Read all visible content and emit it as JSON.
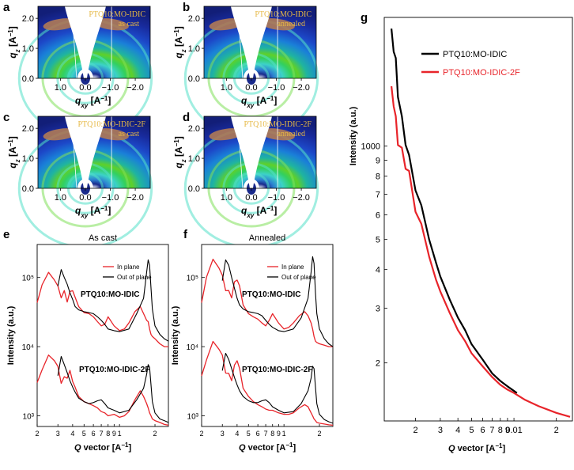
{
  "panel_letters": [
    "a",
    "b",
    "c",
    "d",
    "e",
    "f",
    "g"
  ],
  "colors": {
    "red": "#e8242a",
    "black": "#000000",
    "gold": "#e6b844",
    "det_bg": "#1a2a8c"
  },
  "chart_data": [
    {
      "panel": "a",
      "type": "heatmap",
      "title": "PTQ10:MO-IDIC",
      "subtitle": "as cast",
      "xlabel": "q_xy [A^-1]",
      "ylabel": "q_z [A^-1]",
      "xticks": [
        "1.0",
        "0.0",
        "−1.0",
        "−2.0"
      ],
      "yticks": [
        "0.0",
        "1.0",
        "2.0"
      ],
      "xlim": [
        1.9,
        -2.6
      ],
      "ylim": [
        0,
        2.4
      ]
    },
    {
      "panel": "b",
      "type": "heatmap",
      "title": "PTQ10:MO-IDIC",
      "subtitle": "annealed",
      "xlabel": "q_xy [A^-1]",
      "ylabel": "q_z [A^-1]",
      "xticks": [
        "1.0",
        "0.0",
        "−1.0",
        "−2.0"
      ],
      "yticks": [
        "0.0",
        "1.0",
        "2.0"
      ],
      "xlim": [
        1.9,
        -2.6
      ],
      "ylim": [
        0,
        2.4
      ]
    },
    {
      "panel": "c",
      "type": "heatmap",
      "title": "PTQ10:MO-IDIC-2F",
      "subtitle": "as cast",
      "xlabel": "q_xy [A^-1]",
      "ylabel": "q_z [A^-1]",
      "xticks": [
        "1.0",
        "0.0",
        "−1.0",
        "−2.0"
      ],
      "yticks": [
        "0.0",
        "1.0",
        "2.0"
      ],
      "xlim": [
        1.9,
        -2.6
      ],
      "ylim": [
        0,
        2.4
      ]
    },
    {
      "panel": "d",
      "type": "heatmap",
      "title": "PTQ10:MO-IDIC-2F",
      "subtitle": "annealed",
      "xlabel": "q_xy [A^-1]",
      "ylabel": "q_z [A^-1]",
      "xticks": [
        "1.0",
        "0.0",
        "−1.0",
        "−2.0"
      ],
      "yticks": [
        "0.0",
        "1.0",
        "2.0"
      ],
      "xlim": [
        1.9,
        -2.6
      ],
      "ylim": [
        0,
        2.4
      ]
    },
    {
      "panel": "e",
      "type": "line",
      "title": "As cast",
      "xlabel": "Q vector [A^-1]",
      "ylabel": "Intensity (a.u.)",
      "xscale": "log",
      "yscale": "log",
      "xlim": [
        0.2,
        2.6
      ],
      "ylim": [
        700,
        300000
      ],
      "xticks": [
        {
          "v": 0.2,
          "t": "2"
        },
        {
          "v": 0.3,
          "t": "3"
        },
        {
          "v": 0.4,
          "t": "4"
        },
        {
          "v": 0.5,
          "t": "5"
        },
        {
          "v": 0.6,
          "t": "6"
        },
        {
          "v": 0.7,
          "t": "7"
        },
        {
          "v": 0.8,
          "t": "8"
        },
        {
          "v": 0.9,
          "t": "9"
        },
        {
          "v": 1,
          "t": "1"
        },
        {
          "v": 2,
          "t": "2"
        }
      ],
      "yticks": [
        {
          "v": 1000,
          "t": "10³"
        },
        {
          "v": 10000,
          "t": "10⁴"
        },
        {
          "v": 100000,
          "t": "10⁵"
        }
      ],
      "legend": [
        "In plane",
        "Out of plane"
      ],
      "annotations": [
        "PTQ10:MO-IDIC",
        "PTQ10:MO-IDIC-2F"
      ],
      "series": [
        {
          "name": "PTQ10:MO-IDIC in plane",
          "color": "#e8242a",
          "x": [
            0.2,
            0.22,
            0.25,
            0.28,
            0.3,
            0.32,
            0.34,
            0.36,
            0.38,
            0.4,
            0.42,
            0.45,
            0.5,
            0.55,
            0.6,
            0.65,
            0.7,
            0.75,
            0.8,
            0.9,
            1.0,
            1.1,
            1.2,
            1.35,
            1.5,
            1.6,
            1.7,
            1.75,
            1.8,
            1.85,
            1.9,
            2.0,
            2.2,
            2.4,
            2.6
          ],
          "y": [
            40000,
            85000,
            110000,
            100000,
            70000,
            55000,
            60000,
            48000,
            58000,
            70000,
            48000,
            38000,
            31000,
            30000,
            27000,
            23000,
            20000,
            21000,
            27000,
            20000,
            17000,
            18000,
            22000,
            32000,
            38000,
            30000,
            24000,
            23000,
            18000,
            15000,
            14000,
            13000,
            11000,
            10000,
            10000
          ]
        },
        {
          "name": "PTQ10:MO-IDIC out of plane",
          "color": "#000000",
          "x": [
            0.3,
            0.32,
            0.34,
            0.36,
            0.38,
            0.4,
            0.42,
            0.45,
            0.5,
            0.55,
            0.6,
            0.65,
            0.7,
            0.75,
            0.8,
            0.9,
            1.0,
            1.2,
            1.4,
            1.6,
            1.7,
            1.75,
            1.8,
            1.85,
            1.9,
            2.0,
            2.2,
            2.4,
            2.6
          ],
          "y": [
            75000,
            130000,
            100000,
            80000,
            60000,
            48000,
            38000,
            34000,
            32000,
            31000,
            30000,
            27000,
            24000,
            21000,
            18000,
            17000,
            16500,
            18000,
            30000,
            50000,
            120000,
            180000,
            150000,
            70000,
            35000,
            20000,
            15000,
            13000,
            12000
          ]
        },
        {
          "name": "PTQ10:MO-IDIC-2F in plane",
          "color": "#e8242a",
          "x": [
            0.2,
            0.22,
            0.25,
            0.28,
            0.3,
            0.32,
            0.34,
            0.36,
            0.38,
            0.4,
            0.42,
            0.45,
            0.5,
            0.55,
            0.6,
            0.65,
            0.7,
            0.75,
            0.8,
            0.9,
            1.0,
            1.1,
            1.2,
            1.35,
            1.5,
            1.6,
            1.7,
            1.75,
            1.8,
            1.85,
            1.9,
            2.0,
            2.2,
            2.4,
            2.6
          ],
          "y": [
            2800,
            5000,
            7000,
            6800,
            4800,
            3200,
            3400,
            3800,
            4200,
            3400,
            2400,
            1900,
            1600,
            1500,
            1400,
            1300,
            1150,
            1100,
            1000,
            1050,
            950,
            1000,
            1150,
            1700,
            2300,
            1900,
            1500,
            1300,
            1100,
            1000,
            900,
            850,
            800,
            750,
            730
          ]
        },
        {
          "name": "PTQ10:MO-IDIC-2F out of plane",
          "color": "#000000",
          "x": [
            0.3,
            0.32,
            0.34,
            0.36,
            0.38,
            0.4,
            0.42,
            0.45,
            0.5,
            0.55,
            0.6,
            0.65,
            0.7,
            0.75,
            0.8,
            0.9,
            1.0,
            1.2,
            1.4,
            1.6,
            1.7,
            1.75,
            1.8,
            1.85,
            1.9,
            2.0,
            2.2,
            2.4,
            2.6
          ],
          "y": [
            3800,
            7200,
            5500,
            4200,
            3200,
            2600,
            2200,
            1800,
            1600,
            1500,
            1550,
            1650,
            1700,
            1500,
            1300,
            1200,
            1100,
            1200,
            1700,
            2500,
            4000,
            5500,
            5000,
            2800,
            1600,
            1100,
            900,
            850,
            800
          ]
        }
      ]
    },
    {
      "panel": "f",
      "type": "line",
      "title": "Annealed",
      "xlabel": "Q vector [A^-1]",
      "ylabel": "Intensity (a.u.)",
      "xscale": "log",
      "yscale": "log",
      "xlim": [
        0.2,
        2.6
      ],
      "ylim": [
        700,
        300000
      ],
      "xticks": [
        {
          "v": 0.2,
          "t": "2"
        },
        {
          "v": 0.3,
          "t": "3"
        },
        {
          "v": 0.4,
          "t": "4"
        },
        {
          "v": 0.5,
          "t": "5"
        },
        {
          "v": 0.6,
          "t": "6"
        },
        {
          "v": 0.7,
          "t": "7"
        },
        {
          "v": 0.8,
          "t": "8"
        },
        {
          "v": 0.9,
          "t": "9"
        },
        {
          "v": 1,
          "t": "1"
        },
        {
          "v": 2,
          "t": "2"
        }
      ],
      "yticks": [
        {
          "v": 1000,
          "t": "10³"
        },
        {
          "v": 10000,
          "t": "10⁴"
        },
        {
          "v": 100000,
          "t": "10⁵"
        }
      ],
      "legend": [
        "In plane",
        "Out of plane"
      ],
      "annotations": [
        "PTQ10:MO-IDIC",
        "PTQ10:MO-IDIC-2F"
      ],
      "series": [
        {
          "name": "PTQ10:MO-IDIC in plane",
          "color": "#e8242a",
          "x": [
            0.2,
            0.22,
            0.25,
            0.28,
            0.3,
            0.32,
            0.34,
            0.36,
            0.38,
            0.4,
            0.42,
            0.45,
            0.5,
            0.55,
            0.6,
            0.65,
            0.7,
            0.75,
            0.8,
            0.9,
            1.0,
            1.1,
            1.2,
            1.35,
            1.5,
            1.6,
            1.7,
            1.75,
            1.8,
            1.85,
            1.9,
            2.0,
            2.2,
            2.4,
            2.6
          ],
          "y": [
            40000,
            110000,
            170000,
            150000,
            100000,
            70000,
            60000,
            55000,
            80000,
            100000,
            70000,
            40000,
            30000,
            27000,
            25000,
            22000,
            20000,
            24000,
            30000,
            22000,
            18000,
            19000,
            22000,
            28000,
            32000,
            28000,
            22000,
            18000,
            14000,
            12000,
            11500,
            11000,
            10500,
            10000,
            10000
          ]
        },
        {
          "name": "PTQ10:MO-IDIC out of plane",
          "color": "#000000",
          "x": [
            0.3,
            0.32,
            0.34,
            0.36,
            0.38,
            0.4,
            0.42,
            0.45,
            0.5,
            0.55,
            0.6,
            0.65,
            0.7,
            0.75,
            0.8,
            0.9,
            1.0,
            1.2,
            1.4,
            1.6,
            1.7,
            1.75,
            1.8,
            1.85,
            1.9,
            2.0,
            2.2,
            2.4,
            2.6
          ],
          "y": [
            90000,
            180000,
            150000,
            100000,
            70000,
            50000,
            40000,
            35000,
            32000,
            31000,
            30000,
            28000,
            24000,
            21000,
            19000,
            17000,
            16500,
            18000,
            26000,
            50000,
            120000,
            200000,
            160000,
            60000,
            30000,
            18000,
            13000,
            11000,
            10000
          ]
        },
        {
          "name": "PTQ10:MO-IDIC-2F in plane",
          "color": "#e8242a",
          "x": [
            0.2,
            0.22,
            0.25,
            0.28,
            0.3,
            0.32,
            0.34,
            0.36,
            0.38,
            0.4,
            0.42,
            0.45,
            0.5,
            0.55,
            0.6,
            0.65,
            0.7,
            0.75,
            0.8,
            0.9,
            1.0,
            1.1,
            1.2,
            1.35,
            1.5,
            1.6,
            1.7,
            1.75,
            1.8,
            1.85,
            1.9,
            2.0,
            2.2,
            2.4,
            2.6
          ],
          "y": [
            3500,
            7000,
            11000,
            10000,
            7000,
            4500,
            3800,
            3500,
            5000,
            6800,
            4500,
            2500,
            1900,
            1600,
            1450,
            1350,
            1250,
            1200,
            1200,
            1100,
            1050,
            1050,
            1100,
            1300,
            1450,
            1350,
            1100,
            1000,
            900,
            850,
            800,
            780,
            760,
            740,
            730
          ]
        },
        {
          "name": "PTQ10:MO-IDIC-2F out of plane",
          "color": "#000000",
          "x": [
            0.3,
            0.32,
            0.34,
            0.36,
            0.38,
            0.4,
            0.42,
            0.45,
            0.5,
            0.55,
            0.6,
            0.65,
            0.7,
            0.75,
            0.8,
            0.9,
            1.0,
            1.2,
            1.4,
            1.6,
            1.7,
            1.75,
            1.8,
            1.85,
            1.9,
            2.0,
            2.2,
            2.4,
            2.6
          ],
          "y": [
            4500,
            8000,
            6500,
            4800,
            3600,
            2800,
            2300,
            1900,
            1650,
            1550,
            1550,
            1650,
            1700,
            1550,
            1350,
            1200,
            1100,
            1150,
            1500,
            2300,
            3500,
            5200,
            4800,
            2600,
            1500,
            1050,
            880,
            820,
            780
          ]
        }
      ]
    },
    {
      "panel": "g",
      "type": "line",
      "xlabel": "Q vector [A^-1]",
      "ylabel": "Intensity (a.u.)",
      "xscale": "log",
      "yscale": "log",
      "xlim": [
        0.0012,
        0.026
      ],
      "ylim": [
        130,
        2600
      ],
      "xticks": [
        {
          "v": 0.002,
          "t": "2"
        },
        {
          "v": 0.003,
          "t": "3"
        },
        {
          "v": 0.004,
          "t": "4"
        },
        {
          "v": 0.005,
          "t": "5"
        },
        {
          "v": 0.006,
          "t": "6"
        },
        {
          "v": 0.007,
          "t": "7"
        },
        {
          "v": 0.008,
          "t": "8"
        },
        {
          "v": 0.009,
          "t": "9"
        },
        {
          "v": 0.01,
          "t": "0.01"
        },
        {
          "v": 0.02,
          "t": "2"
        }
      ],
      "yticks": [
        {
          "v": 200,
          "t": "2"
        },
        {
          "v": 300,
          "t": "3"
        },
        {
          "v": 400,
          "t": "4"
        },
        {
          "v": 500,
          "t": "5"
        },
        {
          "v": 600,
          "t": "6"
        },
        {
          "v": 700,
          "t": "7"
        },
        {
          "v": 800,
          "t": "8"
        },
        {
          "v": 900,
          "t": "9"
        },
        {
          "v": 1000,
          "t": "1000"
        }
      ],
      "legend": [
        "PTQ10:MO-IDIC",
        "PTQ10:MO-IDIC-2F"
      ],
      "series": [
        {
          "name": "PTQ10:MO-IDIC",
          "color": "#000000",
          "x": [
            0.00135,
            0.0014,
            0.00145,
            0.0015,
            0.0016,
            0.0017,
            0.0018,
            0.002,
            0.0022,
            0.0025,
            0.0028,
            0.003,
            0.0035,
            0.004,
            0.0045,
            0.005,
            0.006,
            0.007,
            0.008,
            0.009,
            0.0105
          ],
          "y": [
            2300,
            2100,
            1850,
            1500,
            1200,
            1050,
            900,
            750,
            620,
            500,
            420,
            380,
            320,
            280,
            255,
            230,
            205,
            185,
            175,
            168,
            160
          ]
        },
        {
          "name": "PTQ10:MO-IDIC-2F",
          "color": "#e8242a",
          "x": [
            0.00135,
            0.0014,
            0.00145,
            0.0015,
            0.0016,
            0.0017,
            0.0018,
            0.002,
            0.0022,
            0.0025,
            0.0028,
            0.003,
            0.0035,
            0.004,
            0.0045,
            0.005,
            0.006,
            0.007,
            0.008,
            0.009,
            0.01,
            0.012,
            0.015,
            0.02,
            0.025
          ],
          "y": [
            1500,
            1400,
            1200,
            1050,
            950,
            880,
            800,
            640,
            540,
            440,
            370,
            340,
            290,
            255,
            235,
            215,
            195,
            180,
            170,
            164,
            160,
            152,
            145,
            138,
            134
          ]
        }
      ]
    }
  ]
}
